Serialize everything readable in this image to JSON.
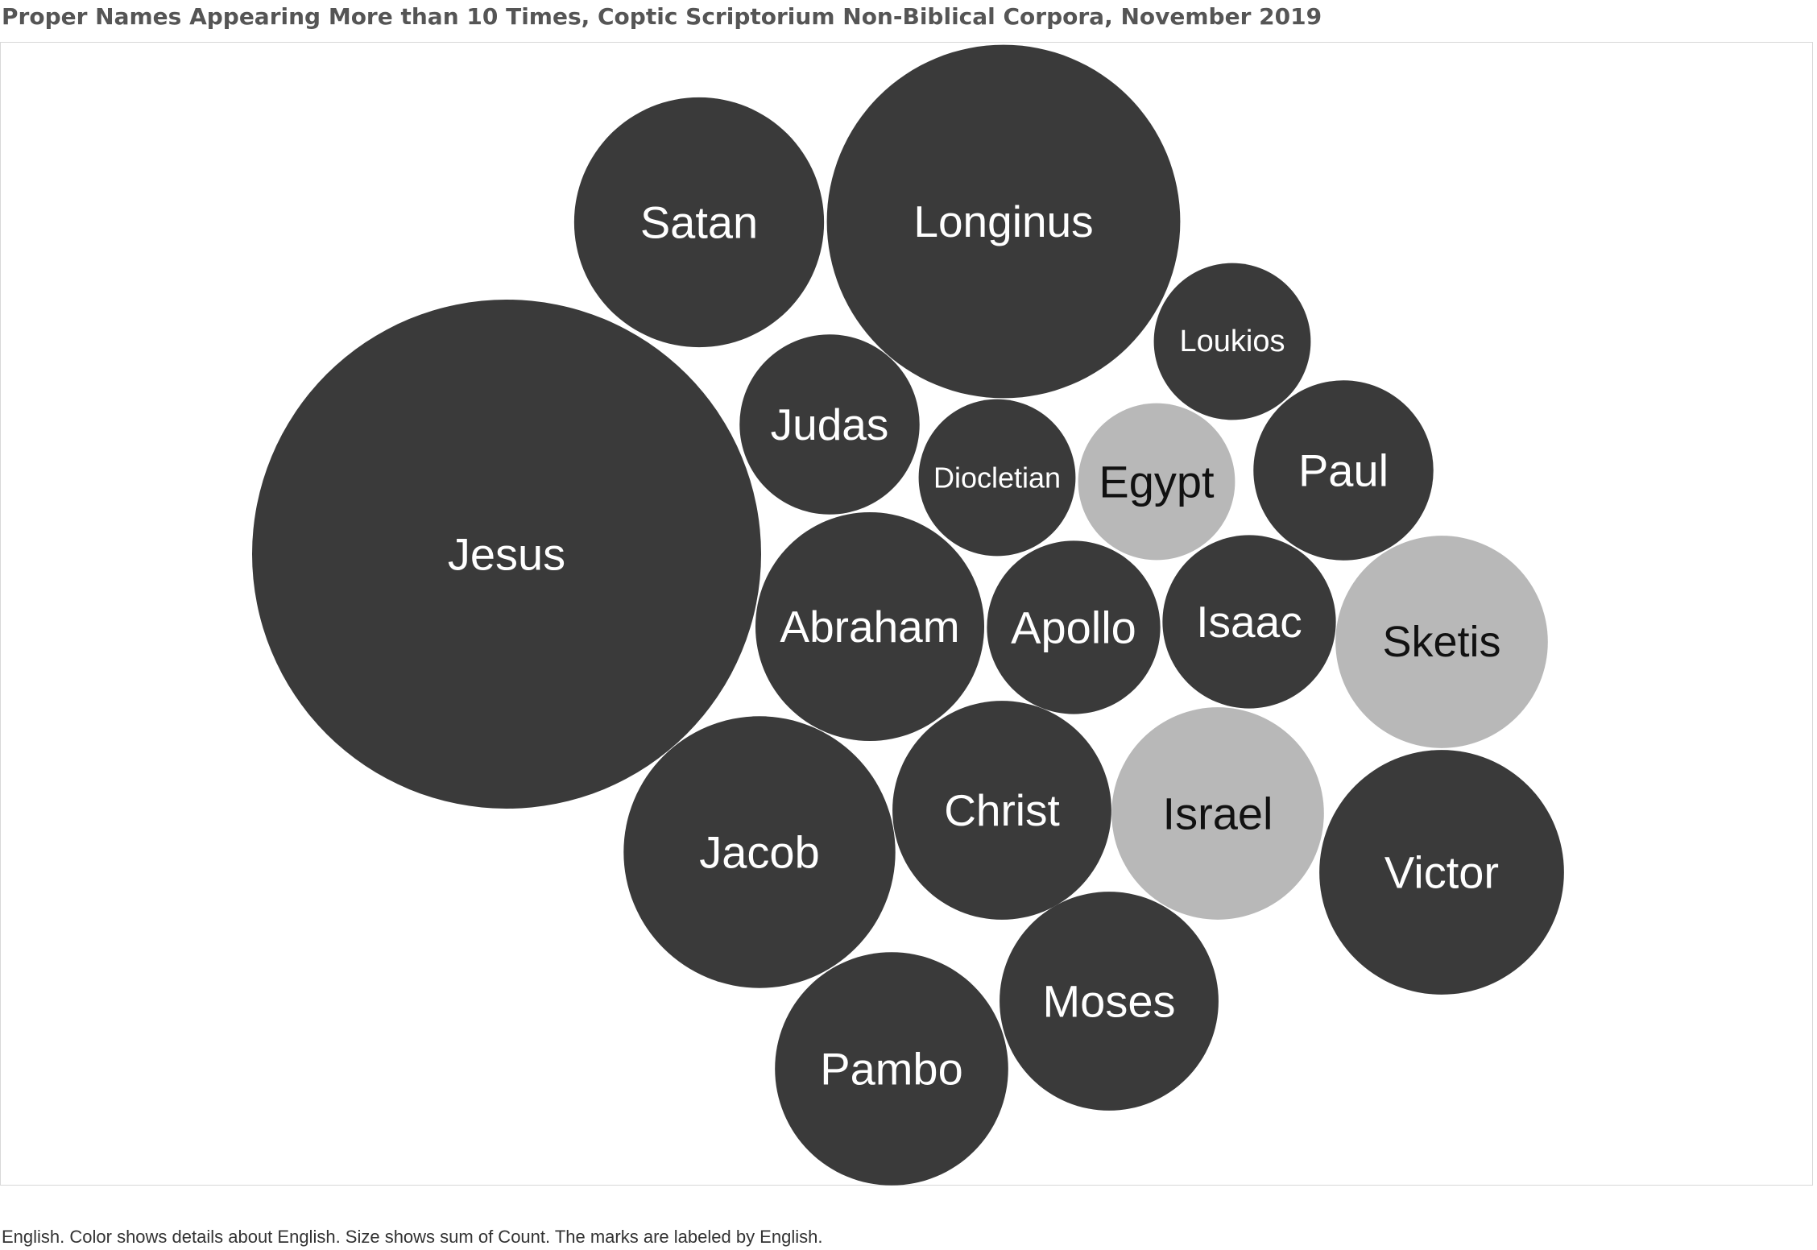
{
  "chart_data": {
    "type": "bubble",
    "title": "Proper Names Appearing More than 10 Times, Coptic Scriptorium Non-Biblical Corpora, November 2019",
    "caption": "English.  Color shows details about English.  Size shows sum of Count.  The marks are labeled by English.",
    "colors": {
      "dark": "#3a3a3a",
      "light": "#b8b8b8",
      "dark_text": "#ffffff",
      "light_text": "#111111"
    },
    "bubbles": [
      {
        "label": "Jesus",
        "tone": "dark",
        "relative_size": 1.0
      },
      {
        "label": "Longinus",
        "tone": "dark",
        "relative_size": 0.482
      },
      {
        "label": "Satan",
        "tone": "dark",
        "relative_size": 0.241
      },
      {
        "label": "Abraham",
        "tone": "dark",
        "relative_size": 0.202
      },
      {
        "label": "Jacob",
        "tone": "dark",
        "relative_size": 0.285
      },
      {
        "label": "Victor",
        "tone": "dark",
        "relative_size": 0.231
      },
      {
        "label": "Pambo",
        "tone": "dark",
        "relative_size": 0.21
      },
      {
        "label": "Christ",
        "tone": "dark",
        "relative_size": 0.185
      },
      {
        "label": "Moses",
        "tone": "dark",
        "relative_size": 0.185
      },
      {
        "label": "Sketis",
        "tone": "light",
        "relative_size": 0.174
      },
      {
        "label": "Israel",
        "tone": "light",
        "relative_size": 0.174
      },
      {
        "label": "Judas",
        "tone": "dark",
        "relative_size": 0.125
      },
      {
        "label": "Paul",
        "tone": "dark",
        "relative_size": 0.125
      },
      {
        "label": "Isaac",
        "tone": "dark",
        "relative_size": 0.116
      },
      {
        "label": "Apollo",
        "tone": "dark",
        "relative_size": 0.116
      },
      {
        "label": "Diocletian",
        "tone": "dark",
        "relative_size": 0.095
      },
      {
        "label": "Egypt",
        "tone": "light",
        "relative_size": 0.095
      },
      {
        "label": "Loukios",
        "tone": "dark",
        "relative_size": 0.095
      }
    ]
  }
}
